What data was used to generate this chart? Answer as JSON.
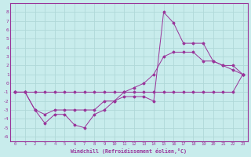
{
  "xlabel": "Windchill (Refroidissement éolien,°C)",
  "background_color": "#c8ecec",
  "grid_color": "#b0d8d8",
  "line_color": "#993399",
  "xlim": [
    -0.5,
    23.5
  ],
  "ylim": [
    -6.5,
    9.0
  ],
  "xticks": [
    0,
    1,
    2,
    3,
    4,
    5,
    6,
    7,
    8,
    9,
    10,
    11,
    12,
    13,
    14,
    15,
    16,
    17,
    18,
    19,
    20,
    21,
    22,
    23
  ],
  "yticks": [
    -6,
    -5,
    -4,
    -3,
    -2,
    -1,
    0,
    1,
    2,
    3,
    4,
    5,
    6,
    7,
    8
  ],
  "line1_x": [
    0,
    1,
    2,
    3,
    4,
    5,
    6,
    7,
    8,
    9,
    10,
    11,
    12,
    13,
    14,
    15,
    16,
    17,
    18,
    19,
    20,
    21,
    22,
    23
  ],
  "line1_y": [
    -1,
    -1,
    -1,
    -1,
    -1,
    -1,
    -1,
    -1,
    -1,
    -1,
    -1,
    -1,
    -1,
    -1,
    -1,
    -1,
    -1,
    -1,
    -1,
    -1,
    -1,
    -1,
    -1,
    1
  ],
  "line2_x": [
    0,
    1,
    2,
    3,
    4,
    5,
    6,
    7,
    8,
    9,
    10,
    11,
    12,
    13,
    14,
    15,
    16,
    17,
    18,
    19,
    20,
    21,
    22,
    23
  ],
  "line2_y": [
    -1,
    -1,
    -3,
    -3.5,
    -3,
    -3,
    -3,
    -3,
    -3,
    -2,
    -2,
    -1,
    -0.5,
    0,
    1,
    3,
    3.5,
    3.5,
    3.5,
    2.5,
    2.5,
    2,
    2,
    1
  ],
  "line3_x": [
    0,
    1,
    2,
    3,
    4,
    5,
    6,
    7,
    8,
    9,
    10,
    11,
    12,
    13,
    14,
    15,
    16,
    17,
    18,
    19,
    20,
    21,
    22,
    23
  ],
  "line3_y": [
    -1,
    -1,
    -3,
    -4.5,
    -3.5,
    -3.5,
    -4.7,
    -5,
    -3.5,
    -3,
    -2,
    -1.5,
    -1.5,
    -1.5,
    -2,
    8,
    6.8,
    4.5,
    4.5,
    4.5,
    2.5,
    2,
    1.5,
    1
  ]
}
